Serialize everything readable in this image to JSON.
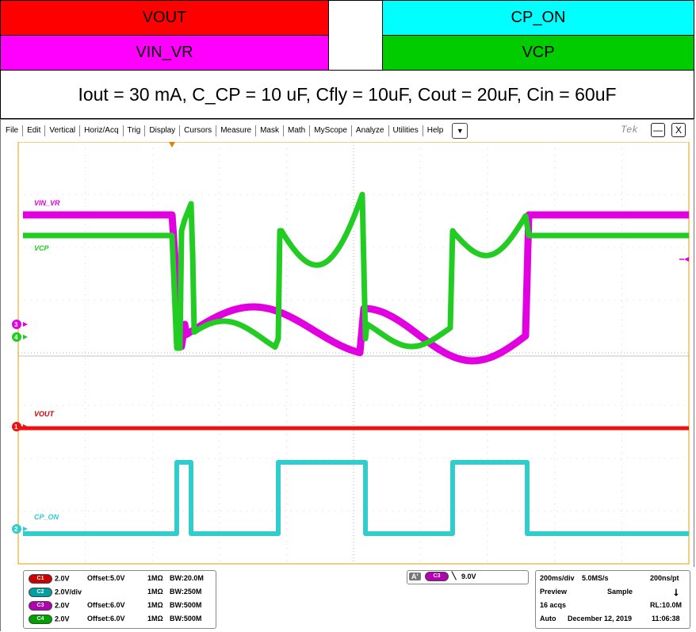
{
  "legend": {
    "vout": {
      "label": "VOUT",
      "color": "#ff0000"
    },
    "cp_on": {
      "label": "CP_ON",
      "color": "#00ffff"
    },
    "vin_vr": {
      "label": "VIN_VR",
      "color": "#ff00ff"
    },
    "vcp": {
      "label": "VCP",
      "color": "#00cc00"
    },
    "conditions": "Iout = 30 mA, C_CP = 10 uF, Cfly = 10uF, Cout = 20uF, Cin = 60uF"
  },
  "menu": [
    "File",
    "Edit",
    "Vertical",
    "Horiz/Acq",
    "Trig",
    "Display",
    "Cursors",
    "Measure",
    "Mask",
    "Math",
    "MyScope",
    "Analyze",
    "Utilities",
    "Help"
  ],
  "menu_dropdown_icon": "triangle-down-icon",
  "brand": "Tek",
  "window_buttons": {
    "minimize": "—",
    "close": "X"
  },
  "traces": {
    "vin_vr": {
      "label": "VIN_VR",
      "marker": "3",
      "color": "#e000e0"
    },
    "vcp": {
      "label": "VCP",
      "marker": "4",
      "color": "#22cc22"
    },
    "vout": {
      "label": "VOUT",
      "marker": "1",
      "color": "#ee1111"
    },
    "cp_on": {
      "label": "CP_ON",
      "marker": "2",
      "color": "#33cccc"
    }
  },
  "channels": [
    {
      "id": "C1",
      "scale": "2.0V",
      "offset": "Offset:5.0V",
      "imp": "1MΩ",
      "bw": "BW:20.0M",
      "color": "#cc0000"
    },
    {
      "id": "C2",
      "scale": "2.0V/div",
      "offset": "",
      "imp": "1MΩ",
      "bw": "BW:250M",
      "color": "#00a0a0"
    },
    {
      "id": "C3",
      "scale": "2.0V",
      "offset": "Offset:6.0V",
      "imp": "1MΩ",
      "bw": "BW:500M",
      "color": "#b000b0"
    },
    {
      "id": "C4",
      "scale": "2.0V",
      "offset": "Offset:6.0V",
      "imp": "1MΩ",
      "bw": "BW:500M",
      "color": "#00a000"
    }
  ],
  "trigger": {
    "source": "A'",
    "channel": "C3",
    "level": "9.0V"
  },
  "acquisition": {
    "timebase": "200ms/div",
    "sample_rate": "5.0MS/s",
    "resolution": "200ns/pt",
    "mode": "Preview",
    "sampling": "Sample",
    "acqs": "16 acqs",
    "record_length": "RL:10.0M",
    "run_mode": "Auto",
    "date": "December 12, 2019",
    "time": "11:06:38"
  }
}
